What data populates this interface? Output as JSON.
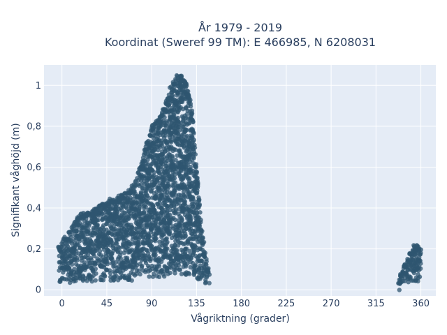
{
  "chart_data": {
    "type": "scatter",
    "title": [
      "År 1979 - 2019",
      "Koordinat (Sweref 99 TM): E 466985, N 6208031"
    ],
    "xlabel": "Vågriktning (grader)",
    "ylabel": "Signifikant våghöjd (m)",
    "xlim": [
      -18,
      375
    ],
    "ylim": [
      -0.03,
      1.1
    ],
    "xticks": [
      0,
      45,
      90,
      135,
      180,
      225,
      270,
      315,
      360
    ],
    "xtick_labels": [
      "0",
      "45",
      "90",
      "135",
      "180",
      "225",
      "270",
      "315",
      "360"
    ],
    "yticks": [
      0,
      0.2,
      0.4,
      0.6,
      0.8,
      1.0
    ],
    "ytick_labels": [
      "0",
      "0,2",
      "0,4",
      "0,6",
      "0,8",
      "1"
    ],
    "grid": true,
    "marker_color": "#2f5570",
    "plot_bg": "#e5ecf6",
    "clusters": [
      {
        "x_range": [
          -3,
          148
        ],
        "y_min": 0.02,
        "upper_envelope": [
          [
            -3,
            0.21
          ],
          [
            0,
            0.24
          ],
          [
            5,
            0.27
          ],
          [
            10,
            0.31
          ],
          [
            15,
            0.35
          ],
          [
            20,
            0.38
          ],
          [
            30,
            0.39
          ],
          [
            40,
            0.42
          ],
          [
            50,
            0.44
          ],
          [
            60,
            0.47
          ],
          [
            70,
            0.5
          ],
          [
            75,
            0.56
          ],
          [
            80,
            0.62
          ],
          [
            85,
            0.72
          ],
          [
            90,
            0.8
          ],
          [
            95,
            0.83
          ],
          [
            100,
            0.86
          ],
          [
            105,
            0.94
          ],
          [
            110,
            1.01
          ],
          [
            115,
            1.05
          ],
          [
            120,
            1.05
          ],
          [
            125,
            1.01
          ],
          [
            130,
            0.9
          ],
          [
            135,
            0.6
          ],
          [
            140,
            0.3
          ],
          [
            145,
            0.15
          ],
          [
            148,
            0.09
          ]
        ]
      },
      {
        "x_range": [
          338,
          360
        ],
        "y_min": 0.03,
        "upper_envelope": [
          [
            338,
            0.05
          ],
          [
            342,
            0.1
          ],
          [
            346,
            0.15
          ],
          [
            350,
            0.2
          ],
          [
            355,
            0.22
          ],
          [
            360,
            0.2
          ]
        ]
      }
    ]
  }
}
